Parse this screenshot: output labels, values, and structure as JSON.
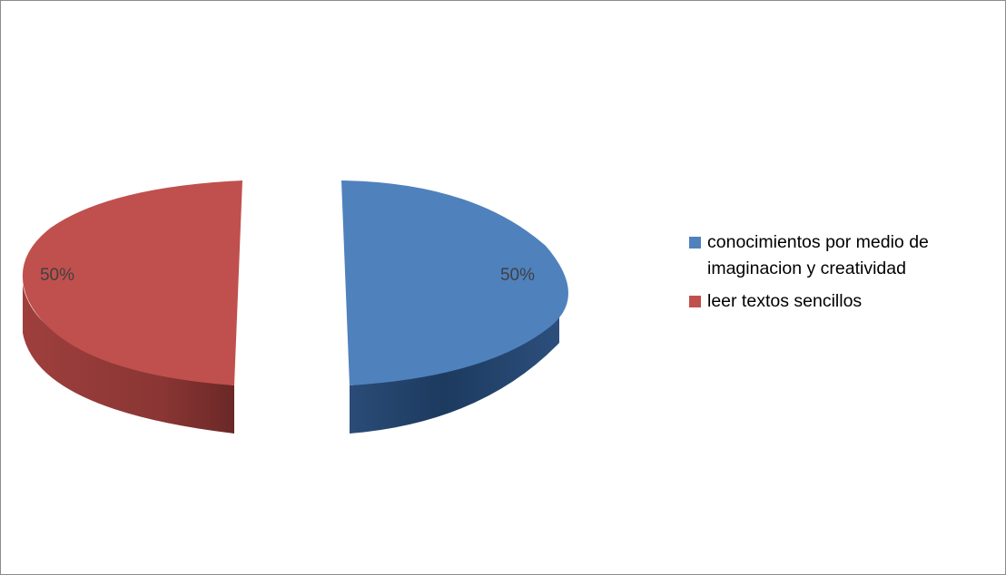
{
  "chart_data": {
    "type": "pie",
    "style": "3d-exploded",
    "categories": [
      "conocimientos por medio de imaginacion y creatividad",
      "leer textos sencillos"
    ],
    "values": [
      50,
      50
    ],
    "data_labels": [
      "50%",
      "50%"
    ],
    "colors": [
      "#4f81bd",
      "#c0504d"
    ],
    "legend_position": "right"
  }
}
